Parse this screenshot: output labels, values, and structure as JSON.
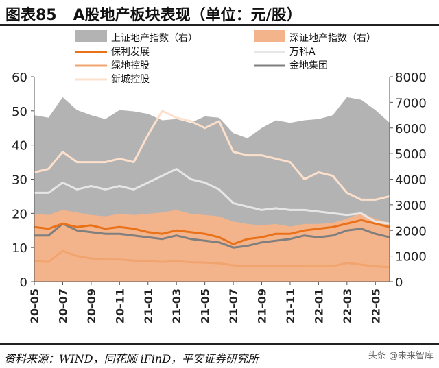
{
  "figure": {
    "title_prefix": "图表85",
    "title": "A股地产板块表现（单位：元/股）",
    "source": "资料来源：WIND，同花顺 iFinD，平安证券研究所",
    "watermark": "头条 @未来智库"
  },
  "chart_data": {
    "type": "line",
    "legend_position": "top",
    "grid": false,
    "x_ticks": [
      "20-05",
      "20-07",
      "20-09",
      "20-11",
      "21-01",
      "21-03",
      "21-05",
      "21-07",
      "21-09",
      "21-11",
      "22-01",
      "22-03",
      "22-05"
    ],
    "x_range": [
      "2020-05",
      "2022-06"
    ],
    "y_left": {
      "range": [
        0,
        60
      ],
      "ticks": [
        0,
        10,
        20,
        30,
        40,
        50,
        60
      ]
    },
    "y_right": {
      "range": [
        0,
        8000
      ],
      "ticks": [
        0,
        1000,
        2000,
        3000,
        4000,
        5000,
        6000,
        7000,
        8000
      ]
    },
    "colors": {
      "shanghai": "#b3b3b3",
      "shenzhen": "#f4b48b",
      "poly": "#e8711a",
      "vanke": "#e6e6e6",
      "gemdale": "#7f7f7f",
      "greenland": "#f2a46e",
      "xincheng": "#fde0cc"
    },
    "series": [
      {
        "key": "shanghai",
        "name": "上证地产指数（右）",
        "kind": "area",
        "axis": "right",
        "x": [
          "2020-05",
          "2020-06",
          "2020-07",
          "2020-08",
          "2020-09",
          "2020-10",
          "2020-11",
          "2020-12",
          "2021-01",
          "2021-02",
          "2021-03",
          "2021-04",
          "2021-05",
          "2021-06",
          "2021-07",
          "2021-08",
          "2021-09",
          "2021-10",
          "2021-11",
          "2021-12",
          "2022-01",
          "2022-02",
          "2022-03",
          "2022-04",
          "2022-05",
          "2022-06"
        ],
        "values": [
          6500,
          6400,
          7200,
          6700,
          6500,
          6350,
          6700,
          6650,
          6550,
          6300,
          6350,
          6200,
          6450,
          6400,
          5800,
          5600,
          6000,
          6300,
          6200,
          6300,
          6350,
          6500,
          7200,
          7100,
          6700,
          6200
        ]
      },
      {
        "key": "shenzhen",
        "name": "深证地产指数（右）",
        "kind": "area",
        "axis": "right",
        "x": [
          "2020-05",
          "2020-06",
          "2020-07",
          "2020-08",
          "2020-09",
          "2020-10",
          "2020-11",
          "2020-12",
          "2021-01",
          "2021-02",
          "2021-03",
          "2021-04",
          "2021-05",
          "2021-06",
          "2021-07",
          "2021-08",
          "2021-09",
          "2021-10",
          "2021-11",
          "2021-12",
          "2022-01",
          "2022-02",
          "2022-03",
          "2022-04",
          "2022-05",
          "2022-06"
        ],
        "values": [
          2650,
          2600,
          2800,
          2700,
          2600,
          2550,
          2650,
          2600,
          2650,
          2700,
          2800,
          2650,
          2600,
          2550,
          2350,
          2250,
          2200,
          2250,
          2150,
          2250,
          2250,
          2300,
          2450,
          2700,
          2450,
          2300
        ]
      },
      {
        "key": "poly",
        "name": "保利发展",
        "kind": "line",
        "axis": "left",
        "x": [
          "2020-05",
          "2020-06",
          "2020-07",
          "2020-08",
          "2020-09",
          "2020-10",
          "2020-11",
          "2020-12",
          "2021-01",
          "2021-02",
          "2021-03",
          "2021-04",
          "2021-05",
          "2021-06",
          "2021-07",
          "2021-08",
          "2021-09",
          "2021-10",
          "2021-11",
          "2021-12",
          "2022-01",
          "2022-02",
          "2022-03",
          "2022-04",
          "2022-05",
          "2022-06"
        ],
        "values": [
          16,
          15.5,
          17,
          16,
          16.5,
          15.5,
          16,
          15.5,
          14.5,
          14,
          15,
          14.5,
          14,
          13,
          11,
          12.5,
          13,
          14,
          14,
          15,
          15.5,
          16,
          17,
          18,
          17,
          16
        ]
      },
      {
        "key": "vanke",
        "name": "万科A",
        "kind": "line",
        "axis": "left",
        "x": [
          "2020-05",
          "2020-06",
          "2020-07",
          "2020-08",
          "2020-09",
          "2020-10",
          "2020-11",
          "2020-12",
          "2021-01",
          "2021-02",
          "2021-03",
          "2021-04",
          "2021-05",
          "2021-06",
          "2021-07",
          "2021-08",
          "2021-09",
          "2021-10",
          "2021-11",
          "2021-12",
          "2022-01",
          "2022-02",
          "2022-03",
          "2022-04",
          "2022-05",
          "2022-06"
        ],
        "values": [
          26,
          26,
          29,
          27,
          28,
          27,
          28,
          27,
          29,
          31,
          33,
          30,
          29,
          27,
          23,
          22,
          21,
          21.5,
          21,
          21,
          20.5,
          20,
          19.5,
          20,
          17.5,
          17
        ]
      },
      {
        "key": "gemdale",
        "name": "金地集团",
        "kind": "line",
        "axis": "left",
        "x": [
          "2020-05",
          "2020-06",
          "2020-07",
          "2020-08",
          "2020-09",
          "2020-10",
          "2020-11",
          "2020-12",
          "2021-01",
          "2021-02",
          "2021-03",
          "2021-04",
          "2021-05",
          "2021-06",
          "2021-07",
          "2021-08",
          "2021-09",
          "2021-10",
          "2021-11",
          "2021-12",
          "2022-01",
          "2022-02",
          "2022-03",
          "2022-04",
          "2022-05",
          "2022-06"
        ],
        "values": [
          13.5,
          13.5,
          17,
          15,
          14.5,
          14,
          14,
          13.5,
          13,
          12.5,
          13.5,
          12.5,
          12,
          11.5,
          10,
          10.5,
          11.5,
          12,
          12.5,
          13.5,
          13,
          13.5,
          15,
          15.5,
          14,
          13
        ]
      },
      {
        "key": "greenland",
        "name": "绿地控股",
        "kind": "line",
        "axis": "left",
        "x": [
          "2020-05",
          "2020-06",
          "2020-07",
          "2020-08",
          "2020-09",
          "2020-10",
          "2020-11",
          "2020-12",
          "2021-01",
          "2021-02",
          "2021-03",
          "2021-04",
          "2021-05",
          "2021-06",
          "2021-07",
          "2021-08",
          "2021-09",
          "2021-10",
          "2021-11",
          "2021-12",
          "2022-01",
          "2022-02",
          "2022-03",
          "2022-04",
          "2022-05",
          "2022-06"
        ],
        "values": [
          6,
          5.8,
          9,
          7.5,
          6.8,
          6.5,
          6.5,
          6.2,
          6,
          5.8,
          6,
          5.7,
          5.6,
          5.4,
          4.8,
          4.6,
          4.5,
          4.6,
          4.6,
          4.5,
          4.5,
          4.5,
          5.5,
          5,
          4.5,
          4.3
        ]
      },
      {
        "key": "xincheng",
        "name": "新城控股",
        "kind": "line",
        "axis": "left",
        "x": [
          "2020-05",
          "2020-06",
          "2020-07",
          "2020-08",
          "2020-09",
          "2020-10",
          "2020-11",
          "2020-12",
          "2021-01",
          "2021-02",
          "2021-03",
          "2021-04",
          "2021-05",
          "2021-06",
          "2021-07",
          "2021-08",
          "2021-09",
          "2021-10",
          "2021-11",
          "2021-12",
          "2022-01",
          "2022-02",
          "2022-03",
          "2022-04",
          "2022-05",
          "2022-06"
        ],
        "values": [
          32,
          33,
          38,
          35,
          35,
          35,
          36,
          35,
          43,
          50,
          48,
          47,
          45,
          47,
          38,
          37,
          37,
          36,
          35,
          30,
          32,
          31,
          26,
          24,
          24,
          25
        ]
      }
    ]
  }
}
